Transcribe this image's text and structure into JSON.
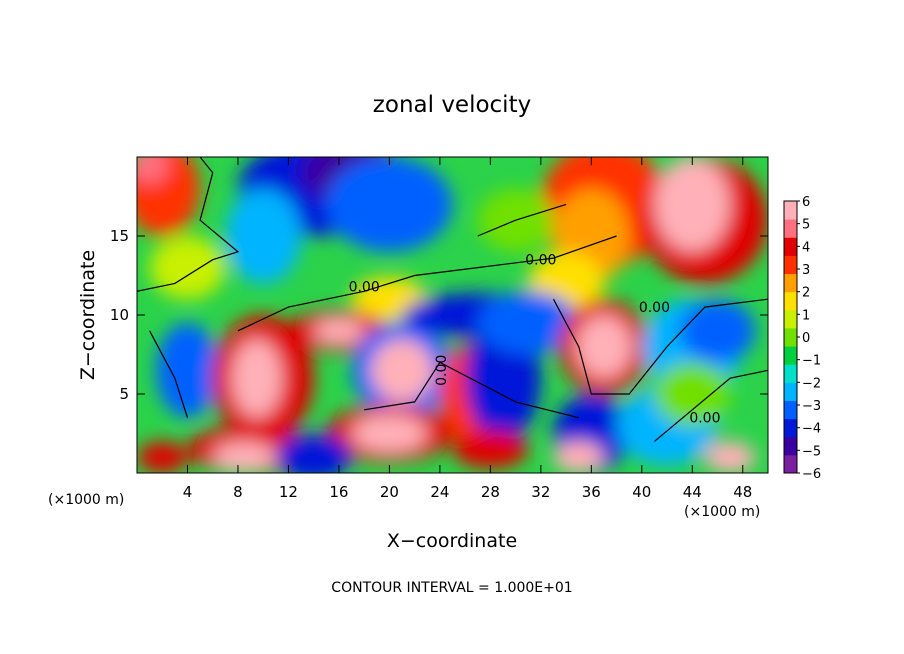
{
  "chart_data": {
    "type": "heatmap",
    "title": "zonal velocity",
    "xlabel": "X−coordinate",
    "ylabel": "Z−coordinate",
    "x_unit": "(×1000 m)",
    "z_unit": "(×1000 m)",
    "footer": "CONTOUR INTERVAL = 1.000E+01",
    "xlim": [
      0,
      50
    ],
    "ylim": [
      0,
      20
    ],
    "x_ticks": [
      4,
      8,
      12,
      16,
      20,
      24,
      28,
      32,
      36,
      40,
      44,
      48
    ],
    "y_ticks": [
      5,
      10,
      15
    ],
    "colorbar": {
      "ticks": [
        "6",
        "5",
        "4",
        "3",
        "2",
        "1",
        "0",
        "−1",
        "−2",
        "−3",
        "−4",
        "−5",
        "−6"
      ],
      "range": [
        -6,
        6
      ]
    },
    "contour_labels": [
      "0.00",
      "0.00",
      "0.00",
      "0.00",
      "0.00"
    ],
    "colors": [
      "#7a1fa0",
      "#3a00a0",
      "#0018d8",
      "#0060ff",
      "#00b4ff",
      "#00e0c8",
      "#00d040",
      "#70e000",
      "#c8f000",
      "#ffe000",
      "#ffa000",
      "#ff3000",
      "#e00000",
      "#ff7080",
      "#ffb0b8"
    ]
  }
}
